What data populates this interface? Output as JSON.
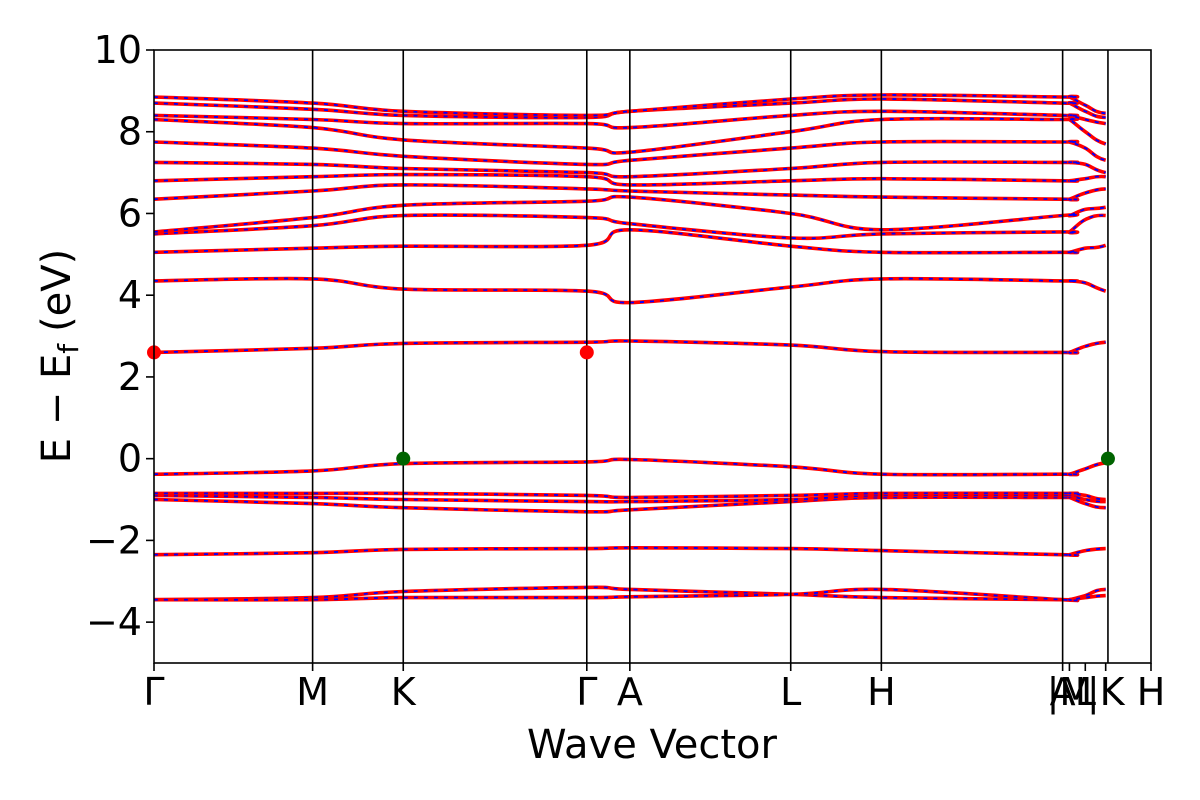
{
  "chart_data": {
    "type": "line",
    "xlabel": "Wave Vector",
    "ylabel": {
      "main": "E − E",
      "subscript": "f",
      "unit": "(eV)"
    },
    "ylim": [
      -5,
      10
    ],
    "yticks": [
      -4,
      -2,
      0,
      2,
      4,
      6,
      8,
      10
    ],
    "ytick_labels": [
      "−4",
      "−2",
      "0",
      "2",
      "4",
      "6",
      "8",
      "10"
    ],
    "xlim": [
      0,
      2.2
    ],
    "kpoints": [
      {
        "label": "Γ",
        "x": 0.0
      },
      {
        "label": "M",
        "x": 0.35
      },
      {
        "label": "K",
        "x": 0.55
      },
      {
        "label": "Γ",
        "x": 0.955
      },
      {
        "label": "A",
        "x": 1.05
      },
      {
        "label": "L",
        "x": 1.405
      },
      {
        "label": "H",
        "x": 1.605
      },
      {
        "label": "A",
        "x": 2.005
      },
      {
        "label": "|M",
        "x": 2.02
      },
      {
        "label": "L",
        "x": 2.055
      },
      {
        "label": "|K",
        "x": 2.1
      },
      {
        "label": "H",
        "x": 2.2
      }
    ],
    "segment_boundaries": [
      0.35,
      0.55,
      0.955,
      1.05,
      1.405,
      1.605,
      2.005,
      2.105
    ],
    "colors": {
      "up": "#ff0000",
      "down": "#0000ff",
      "cbm": "#ff0000",
      "vbm": "#006400",
      "frame": "#000000"
    },
    "bands": [
      [
        -3.45,
        -3.4,
        -3.25,
        -3.15,
        -3.2,
        -3.32,
        -3.4,
        -3.45,
        -3.45,
        -3.35,
        -3.2,
        -3.35,
        -3.45
      ],
      [
        -3.45,
        -3.45,
        -3.4,
        -3.4,
        -3.38,
        -3.32,
        -3.2,
        -3.45,
        -3.45,
        -3.4,
        -3.35,
        -3.32,
        -3.45
      ],
      [
        -2.35,
        -2.3,
        -2.22,
        -2.2,
        -2.18,
        -2.2,
        -2.25,
        -2.35,
        -2.35,
        -2.25,
        -2.2,
        -2.2,
        -2.35
      ],
      [
        -1.0,
        -1.1,
        -1.2,
        -1.3,
        -1.25,
        -1.05,
        -0.95,
        -0.95,
        -0.95,
        -1.1,
        -1.2,
        -1.1,
        -0.95
      ],
      [
        -0.9,
        -0.95,
        -1.0,
        -1.05,
        -1.05,
        -1.0,
        -0.9,
        -0.9,
        -0.9,
        -1.0,
        -1.05,
        -1.0,
        -0.9
      ],
      [
        -0.85,
        -0.85,
        -0.85,
        -0.9,
        -0.95,
        -0.9,
        -0.85,
        -0.85,
        -0.85,
        -0.9,
        -1.0,
        -0.9,
        -0.8
      ],
      [
        -0.38,
        -0.3,
        -0.12,
        -0.08,
        -0.02,
        -0.2,
        -0.38,
        -0.38,
        -0.38,
        -0.25,
        -0.1,
        -0.05,
        -0.38
      ],
      [
        2.6,
        2.7,
        2.82,
        2.85,
        2.88,
        2.78,
        2.62,
        2.6,
        2.6,
        2.75,
        2.85,
        2.88,
        2.6
      ],
      [
        4.35,
        4.4,
        4.15,
        4.1,
        3.82,
        4.2,
        4.4,
        4.35,
        4.35,
        4.3,
        4.1,
        3.82,
        4.35
      ],
      [
        5.05,
        5.15,
        5.2,
        5.22,
        5.6,
        5.2,
        5.05,
        5.05,
        5.05,
        5.15,
        5.22,
        5.7,
        5.05
      ],
      [
        5.5,
        5.7,
        5.95,
        5.9,
        5.75,
        5.4,
        5.5,
        5.55,
        5.55,
        5.85,
        5.95,
        5.75,
        5.55
      ],
      [
        5.55,
        5.9,
        6.2,
        6.3,
        6.4,
        6.0,
        5.6,
        5.95,
        5.95,
        6.1,
        6.15,
        6.4,
        5.95
      ],
      [
        6.35,
        6.55,
        6.7,
        6.6,
        6.55,
        6.45,
        6.4,
        6.35,
        6.35,
        6.5,
        6.6,
        6.55,
        6.35
      ],
      [
        6.8,
        6.9,
        6.95,
        6.9,
        6.7,
        6.8,
        6.85,
        6.8,
        6.8,
        6.85,
        6.9,
        6.7,
        6.8
      ],
      [
        7.25,
        7.2,
        7.1,
        7.0,
        6.9,
        7.1,
        7.25,
        7.25,
        7.25,
        7.2,
        7.0,
        6.9,
        7.25
      ],
      [
        7.75,
        7.6,
        7.4,
        7.2,
        7.3,
        7.6,
        7.75,
        7.75,
        7.75,
        7.6,
        7.3,
        7.2,
        7.75
      ],
      [
        8.3,
        8.1,
        7.8,
        7.6,
        7.5,
        8.0,
        8.3,
        8.3,
        8.3,
        8.0,
        7.7,
        7.5,
        8.3
      ],
      [
        8.4,
        8.3,
        8.2,
        8.2,
        8.1,
        8.4,
        8.5,
        8.4,
        8.4,
        8.3,
        8.2,
        8.1,
        8.4
      ],
      [
        8.7,
        8.55,
        8.4,
        8.35,
        8.5,
        8.7,
        8.8,
        8.7,
        8.7,
        8.5,
        8.35,
        8.5,
        8.7
      ],
      [
        8.85,
        8.7,
        8.5,
        8.4,
        8.5,
        8.8,
        8.9,
        8.85,
        8.85,
        8.65,
        8.45,
        8.55,
        8.85
      ]
    ],
    "markers": [
      {
        "name": "cbm",
        "x": 0.0,
        "y": 2.6,
        "color": "#ff0000"
      },
      {
        "name": "cbm",
        "x": 0.955,
        "y": 2.6,
        "color": "#ff0000"
      },
      {
        "name": "vbm",
        "x": 0.55,
        "y": 0.0,
        "color": "#006400"
      },
      {
        "name": "vbm",
        "x": 2.105,
        "y": 0.0,
        "color": "#006400"
      }
    ]
  }
}
